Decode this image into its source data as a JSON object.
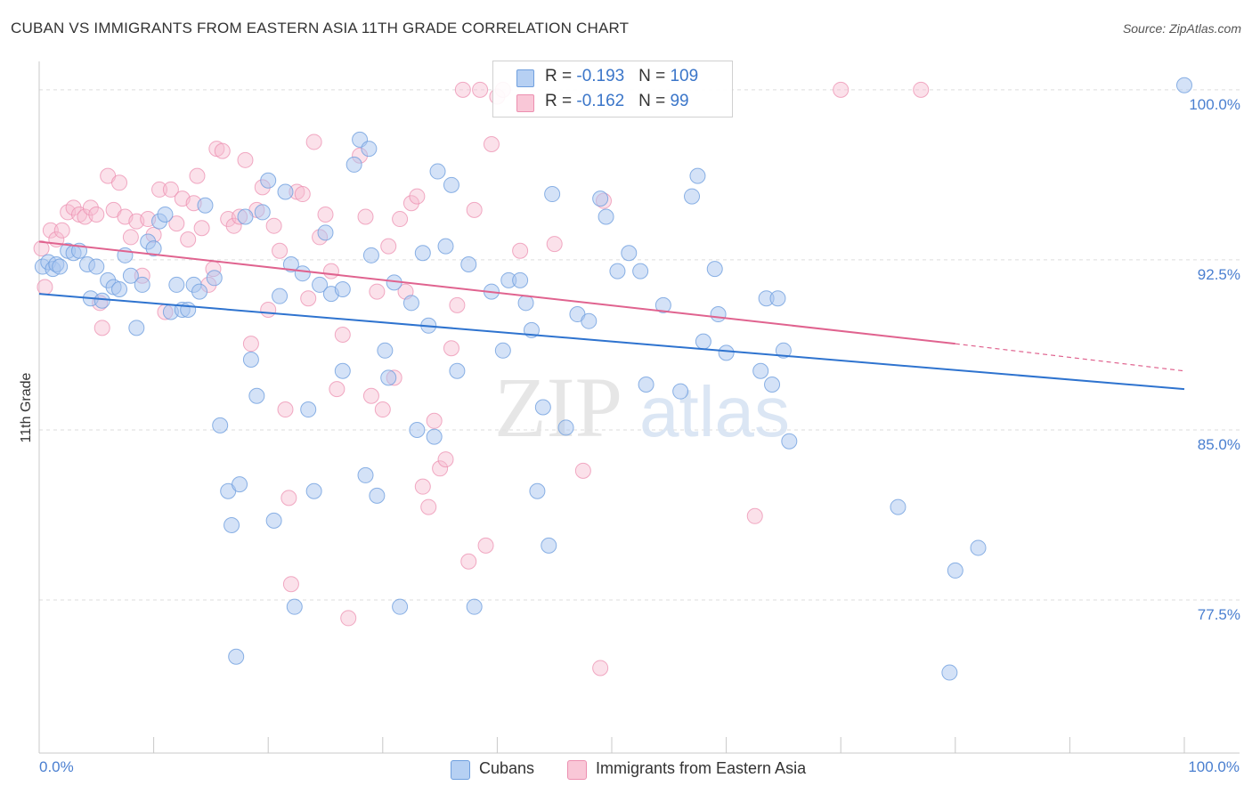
{
  "header": {
    "title": "CUBAN VS IMMIGRANTS FROM EASTERN ASIA 11TH GRADE CORRELATION CHART",
    "source": "Source: ZipAtlas.com"
  },
  "watermark": {
    "zip": "ZIP",
    "atlas": "atlas"
  },
  "legend_box": {
    "cubans": {
      "r_label": "R = ",
      "r_value": "-0.193",
      "n_label": "N = ",
      "n_value": "109"
    },
    "eastern_asia": {
      "r_label": "R = ",
      "r_value": "-0.162",
      "n_label": "N = ",
      "n_value": "99"
    }
  },
  "bottom_legend": {
    "cubans": "Cubans",
    "eastern_asia": "Immigrants from Eastern Asia"
  },
  "x_axis": {
    "min_label": "0.0%",
    "max_label": "100.0%"
  },
  "colors": {
    "cubans_fill": "#a9c6ef",
    "cubans_stroke": "#6f9fde",
    "cubans_line": "#2e73cf",
    "asia_fill": "#f6bcd0",
    "asia_stroke": "#ec8fb0",
    "asia_line": "#e0638f",
    "grid": "#dddddd",
    "accent_text": "#4a7fd0"
  },
  "chart_data": {
    "type": "scatter",
    "title": "CUBAN VS IMMIGRANTS FROM EASTERN ASIA 11TH GRADE CORRELATION CHART",
    "xlabel": "",
    "ylabel": "11th Grade",
    "xlim": [
      0,
      100
    ],
    "ylim": [
      70.75,
      101.25
    ],
    "y_ticks": [
      77.5,
      85.0,
      92.5,
      100.0
    ],
    "y_tick_labels": [
      "77.5%",
      "85.0%",
      "92.5%",
      "100.0%"
    ],
    "grid": true,
    "legend_placement": "top-center and bottom",
    "series": [
      {
        "name": "Cubans",
        "r": -0.193,
        "n": 109,
        "trend": {
          "x": [
            0,
            100
          ],
          "y": [
            91.0,
            86.8
          ]
        },
        "points": [
          [
            0.3,
            92.2
          ],
          [
            0.8,
            92.4
          ],
          [
            1.2,
            92.1
          ],
          [
            1.5,
            92.3
          ],
          [
            1.8,
            92.2
          ],
          [
            2.5,
            92.9
          ],
          [
            3,
            92.8
          ],
          [
            3.5,
            92.9
          ],
          [
            4.2,
            92.3
          ],
          [
            4.5,
            90.8
          ],
          [
            5,
            92.2
          ],
          [
            5.5,
            90.7
          ],
          [
            6,
            91.6
          ],
          [
            6.5,
            91.3
          ],
          [
            7,
            91.2
          ],
          [
            7.5,
            92.7
          ],
          [
            8,
            91.8
          ],
          [
            8.5,
            89.5
          ],
          [
            9,
            91.4
          ],
          [
            9.5,
            93.3
          ],
          [
            10,
            93.0
          ],
          [
            10.5,
            94.2
          ],
          [
            11,
            94.5
          ],
          [
            11.5,
            90.2
          ],
          [
            12,
            91.4
          ],
          [
            12.5,
            90.3
          ],
          [
            13,
            90.3
          ],
          [
            13.5,
            91.4
          ],
          [
            14,
            91.1
          ],
          [
            14.5,
            94.9
          ],
          [
            15.3,
            91.7
          ],
          [
            15.8,
            85.2
          ],
          [
            16.5,
            82.3
          ],
          [
            16.8,
            80.8
          ],
          [
            17.2,
            75.0
          ],
          [
            17.5,
            82.6
          ],
          [
            18,
            94.4
          ],
          [
            18.5,
            88.1
          ],
          [
            19,
            86.5
          ],
          [
            19.5,
            94.6
          ],
          [
            20,
            96.0
          ],
          [
            20.5,
            81.0
          ],
          [
            21,
            90.9
          ],
          [
            21.5,
            95.5
          ],
          [
            22,
            92.3
          ],
          [
            22.3,
            77.2
          ],
          [
            23,
            91.9
          ],
          [
            23.5,
            85.9
          ],
          [
            24,
            82.3
          ],
          [
            24.5,
            91.4
          ],
          [
            25,
            93.7
          ],
          [
            25.5,
            91.0
          ],
          [
            26.5,
            87.6
          ],
          [
            26.5,
            91.2
          ],
          [
            27.5,
            96.7
          ],
          [
            28,
            97.8
          ],
          [
            28.5,
            83.0
          ],
          [
            28.8,
            97.4
          ],
          [
            29,
            92.7
          ],
          [
            29.5,
            82.1
          ],
          [
            30.2,
            88.5
          ],
          [
            30.5,
            87.3
          ],
          [
            31,
            91.5
          ],
          [
            31.5,
            77.2
          ],
          [
            32.5,
            90.6
          ],
          [
            33,
            85.0
          ],
          [
            33.5,
            92.8
          ],
          [
            34,
            89.6
          ],
          [
            34.5,
            84.7
          ],
          [
            34.8,
            96.4
          ],
          [
            35.5,
            93.1
          ],
          [
            36,
            95.8
          ],
          [
            36.5,
            87.6
          ],
          [
            37.5,
            92.3
          ],
          [
            38,
            77.2
          ],
          [
            39.5,
            91.1
          ],
          [
            40.5,
            88.5
          ],
          [
            41,
            91.6
          ],
          [
            42,
            91.6
          ],
          [
            42.5,
            90.6
          ],
          [
            43,
            89.4
          ],
          [
            43.5,
            82.3
          ],
          [
            44,
            86.0
          ],
          [
            44.5,
            79.9
          ],
          [
            44.8,
            95.4
          ],
          [
            46,
            85.1
          ],
          [
            47,
            90.1
          ],
          [
            48,
            89.8
          ],
          [
            49,
            95.2
          ],
          [
            49.5,
            94.4
          ],
          [
            50.5,
            92.0
          ],
          [
            51.5,
            92.8
          ],
          [
            52.5,
            92.0
          ],
          [
            53,
            87.0
          ],
          [
            54.5,
            90.5
          ],
          [
            56,
            86.7
          ],
          [
            57,
            95.3
          ],
          [
            57.5,
            96.2
          ],
          [
            58,
            88.9
          ],
          [
            59,
            92.1
          ],
          [
            59.3,
            90.1
          ],
          [
            60,
            88.4
          ],
          [
            63,
            87.6
          ],
          [
            63.5,
            90.8
          ],
          [
            64,
            87.0
          ],
          [
            64.5,
            90.8
          ],
          [
            65,
            88.5
          ],
          [
            65.5,
            84.5
          ],
          [
            75,
            81.6
          ],
          [
            80,
            78.8
          ],
          [
            82,
            79.8
          ],
          [
            79.5,
            74.3
          ],
          [
            100,
            100.2
          ]
        ]
      },
      {
        "name": "Immigrants from Eastern Asia",
        "r": -0.162,
        "n": 99,
        "trend": {
          "x": [
            0,
            80
          ],
          "y": [
            93.3,
            88.8
          ]
        },
        "trend_dashed": {
          "x": [
            80,
            100
          ],
          "y": [
            88.8,
            87.6
          ]
        },
        "points": [
          [
            0.2,
            93.0
          ],
          [
            0.5,
            91.3
          ],
          [
            1,
            93.8
          ],
          [
            1.5,
            93.4
          ],
          [
            2,
            93.8
          ],
          [
            2.5,
            94.6
          ],
          [
            3,
            94.8
          ],
          [
            3.5,
            94.5
          ],
          [
            4,
            94.4
          ],
          [
            4.5,
            94.8
          ],
          [
            5,
            94.5
          ],
          [
            5.3,
            90.6
          ],
          [
            5.5,
            89.5
          ],
          [
            6,
            96.2
          ],
          [
            6.5,
            94.7
          ],
          [
            7,
            95.9
          ],
          [
            7.5,
            94.4
          ],
          [
            8,
            93.5
          ],
          [
            8.5,
            94.2
          ],
          [
            9,
            91.8
          ],
          [
            9.5,
            94.3
          ],
          [
            10,
            93.6
          ],
          [
            10.5,
            95.6
          ],
          [
            11,
            90.2
          ],
          [
            11.5,
            95.6
          ],
          [
            12,
            94.1
          ],
          [
            12.5,
            95.2
          ],
          [
            13,
            93.4
          ],
          [
            13.5,
            95.0
          ],
          [
            13.8,
            96.2
          ],
          [
            14.2,
            93.9
          ],
          [
            14.8,
            91.4
          ],
          [
            15.2,
            92.1
          ],
          [
            15.5,
            97.4
          ],
          [
            16,
            97.3
          ],
          [
            16.5,
            94.3
          ],
          [
            17,
            94.0
          ],
          [
            17.5,
            94.4
          ],
          [
            18,
            96.9
          ],
          [
            18.5,
            88.8
          ],
          [
            19,
            94.7
          ],
          [
            19.5,
            95.7
          ],
          [
            20,
            90.3
          ],
          [
            20.5,
            94.0
          ],
          [
            21,
            92.9
          ],
          [
            21.5,
            85.9
          ],
          [
            21.8,
            82.0
          ],
          [
            22,
            78.2
          ],
          [
            22.5,
            95.5
          ],
          [
            23,
            95.4
          ],
          [
            23.5,
            90.8
          ],
          [
            24,
            97.7
          ],
          [
            24.5,
            93.5
          ],
          [
            25,
            94.5
          ],
          [
            25.5,
            92.0
          ],
          [
            26,
            86.8
          ],
          [
            26.5,
            89.2
          ],
          [
            27,
            76.7
          ],
          [
            28,
            97.1
          ],
          [
            28.5,
            94.4
          ],
          [
            29,
            86.5
          ],
          [
            29.5,
            91.1
          ],
          [
            30,
            85.9
          ],
          [
            30.5,
            93.1
          ],
          [
            31,
            87.3
          ],
          [
            31.5,
            94.3
          ],
          [
            32,
            91.1
          ],
          [
            32.5,
            95.0
          ],
          [
            33,
            95.3
          ],
          [
            33.5,
            82.5
          ],
          [
            34,
            81.6
          ],
          [
            34.5,
            85.4
          ],
          [
            35,
            83.3
          ],
          [
            35.5,
            83.7
          ],
          [
            36,
            88.6
          ],
          [
            36.5,
            90.5
          ],
          [
            37,
            100.0
          ],
          [
            37.5,
            79.2
          ],
          [
            38,
            94.7
          ],
          [
            38.5,
            100.0
          ],
          [
            39,
            79.9
          ],
          [
            39.5,
            97.6
          ],
          [
            40,
            99.7
          ],
          [
            40.5,
            100.0
          ],
          [
            42,
            92.9
          ],
          [
            45,
            93.2
          ],
          [
            47.5,
            83.2
          ],
          [
            49,
            74.5
          ],
          [
            49.3,
            95.1
          ],
          [
            62.5,
            81.2
          ],
          [
            70,
            100.0
          ],
          [
            77,
            100.0
          ]
        ]
      }
    ]
  }
}
